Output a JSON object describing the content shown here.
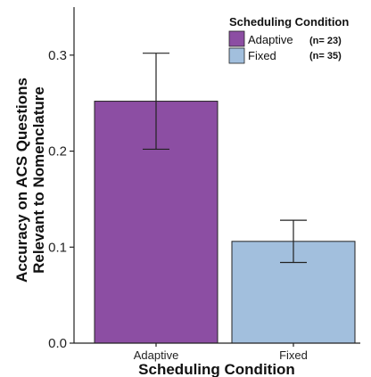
{
  "chart_data": {
    "type": "bar",
    "categories": [
      "Adaptive",
      "Fixed"
    ],
    "values": [
      0.252,
      0.106
    ],
    "error_low": [
      0.202,
      0.084
    ],
    "error_high": [
      0.302,
      0.128
    ],
    "colors": [
      "#8c4ea3",
      "#a2bfdd"
    ],
    "title": "",
    "xlabel": "Scheduling Condition",
    "ylabel_lines": [
      "Accuracy on ACS Questions",
      "Relevant to Nomenclature"
    ],
    "ylim": [
      0,
      0.35
    ],
    "yticks": [
      0.0,
      0.1,
      0.2,
      0.3
    ],
    "ytick_labels": [
      "0.0",
      "0.1",
      "0.2",
      "0.3"
    ],
    "grid": false,
    "legend": {
      "title": "Scheduling Condition",
      "placement": "top-right",
      "entries": [
        {
          "label": "Adaptive",
          "n": "(n= 23)",
          "color": "#8c4ea3"
        },
        {
          "label": "Fixed",
          "n": "(n= 35)",
          "color": "#a2bfdd"
        }
      ]
    }
  }
}
